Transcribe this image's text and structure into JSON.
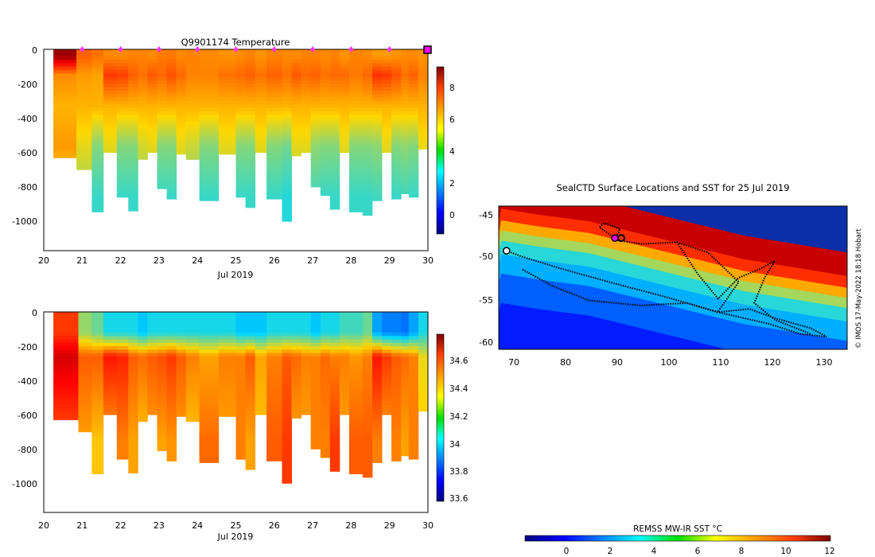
{
  "colors": {
    "jet": [
      "#00007f",
      "#0000ff",
      "#007fff",
      "#00ffff",
      "#7fff7f",
      "#ffff00",
      "#ff7f00",
      "#ff0000",
      "#7f0000"
    ],
    "profile_marker": "#ff33ff",
    "track": "#000000",
    "current_position": "#ff00ff"
  },
  "chart_data": [
    {
      "type": "heatmap",
      "name": "temperature-section",
      "title": "Q9901174  Temperature",
      "xlabel": "Jul 2019",
      "ylabel": "",
      "x_ticks": [
        "20",
        "21",
        "22",
        "23",
        "24",
        "25",
        "26",
        "27",
        "28",
        "29",
        "30"
      ],
      "y_ticks": [
        "0",
        "-200",
        "-400",
        "-600",
        "-800",
        "-1000"
      ],
      "xlim": [
        20,
        30
      ],
      "ylim": [
        -1170,
        0
      ],
      "colorbar": {
        "min": -1,
        "max": 9.5,
        "ticks": [
          "0",
          "2",
          "4",
          "6",
          "8"
        ],
        "tick_values": [
          0,
          2,
          4,
          6,
          8
        ]
      },
      "profile_marker_days": [
        21,
        22,
        23,
        24,
        25,
        26,
        27,
        28,
        29
      ],
      "profiles": [
        {
          "t0": 20.25,
          "t1": 20.85,
          "maxdepth": 630,
          "surface": 9.2,
          "thermo": 6.5,
          "deep": 5.5
        },
        {
          "t0": 20.85,
          "t1": 21.25,
          "maxdepth": 700,
          "surface": 7.0,
          "thermo": 6.3,
          "deep": 4.5
        },
        {
          "t0": 21.25,
          "t1": 21.55,
          "maxdepth": 945,
          "surface": 6.8,
          "thermo": 6.2,
          "deep": 3.5
        },
        {
          "t0": 21.55,
          "t1": 21.9,
          "maxdepth": 600,
          "surface": 6.5,
          "thermo": 7.5,
          "deep": 4.5
        },
        {
          "t0": 21.9,
          "t1": 22.2,
          "maxdepth": 860,
          "surface": 6.5,
          "thermo": 7.4,
          "deep": 3.5
        },
        {
          "t0": 22.2,
          "t1": 22.45,
          "maxdepth": 940,
          "surface": 6.6,
          "thermo": 7.0,
          "deep": 3.5
        },
        {
          "t0": 22.45,
          "t1": 22.7,
          "maxdepth": 640,
          "surface": 6.6,
          "thermo": 6.8,
          "deep": 4.3
        },
        {
          "t0": 22.7,
          "t1": 22.95,
          "maxdepth": 600,
          "surface": 6.5,
          "thermo": 7.1,
          "deep": 4.5
        },
        {
          "t0": 22.95,
          "t1": 23.2,
          "maxdepth": 810,
          "surface": 6.7,
          "thermo": 6.9,
          "deep": 3.5
        },
        {
          "t0": 23.2,
          "t1": 23.45,
          "maxdepth": 870,
          "surface": 6.7,
          "thermo": 7.2,
          "deep": 3.5
        },
        {
          "t0": 23.45,
          "t1": 23.7,
          "maxdepth": 610,
          "surface": 6.5,
          "thermo": 6.9,
          "deep": 4.5
        },
        {
          "t0": 23.7,
          "t1": 24.05,
          "maxdepth": 640,
          "surface": 6.6,
          "thermo": 6.6,
          "deep": 4.2
        },
        {
          "t0": 24.05,
          "t1": 24.55,
          "maxdepth": 880,
          "surface": 6.5,
          "thermo": 6.6,
          "deep": 3.5
        },
        {
          "t0": 24.55,
          "t1": 25.0,
          "maxdepth": 610,
          "surface": 6.4,
          "thermo": 6.8,
          "deep": 4.5
        },
        {
          "t0": 25.0,
          "t1": 25.25,
          "maxdepth": 860,
          "surface": 6.5,
          "thermo": 6.9,
          "deep": 3.5
        },
        {
          "t0": 25.25,
          "t1": 25.5,
          "maxdepth": 920,
          "surface": 6.6,
          "thermo": 7.0,
          "deep": 3.5
        },
        {
          "t0": 25.5,
          "t1": 25.8,
          "maxdepth": 600,
          "surface": 6.4,
          "thermo": 6.8,
          "deep": 4.5
        },
        {
          "t0": 25.8,
          "t1": 26.2,
          "maxdepth": 870,
          "surface": 6.6,
          "thermo": 7.0,
          "deep": 3.5
        },
        {
          "t0": 26.2,
          "t1": 26.45,
          "maxdepth": 1000,
          "surface": 6.5,
          "thermo": 6.8,
          "deep": 3.3
        },
        {
          "t0": 26.45,
          "t1": 26.7,
          "maxdepth": 620,
          "surface": 6.5,
          "thermo": 7.1,
          "deep": 4.5
        },
        {
          "t0": 26.7,
          "t1": 26.95,
          "maxdepth": 600,
          "surface": 6.6,
          "thermo": 6.9,
          "deep": 4.5
        },
        {
          "t0": 26.95,
          "t1": 27.2,
          "maxdepth": 800,
          "surface": 6.6,
          "thermo": 7.0,
          "deep": 3.6
        },
        {
          "t0": 27.2,
          "t1": 27.45,
          "maxdepth": 850,
          "surface": 6.5,
          "thermo": 6.8,
          "deep": 3.5
        },
        {
          "t0": 27.45,
          "t1": 27.7,
          "maxdepth": 930,
          "surface": 6.6,
          "thermo": 6.9,
          "deep": 3.5
        },
        {
          "t0": 27.7,
          "t1": 27.95,
          "maxdepth": 600,
          "surface": 6.4,
          "thermo": 6.9,
          "deep": 4.5
        },
        {
          "t0": 27.95,
          "t1": 28.3,
          "maxdepth": 945,
          "surface": 6.6,
          "thermo": 6.7,
          "deep": 3.5
        },
        {
          "t0": 28.3,
          "t1": 28.55,
          "maxdepth": 965,
          "surface": 6.5,
          "thermo": 6.9,
          "deep": 3.5
        },
        {
          "t0": 28.55,
          "t1": 28.8,
          "maxdepth": 880,
          "surface": 6.3,
          "thermo": 7.6,
          "deep": 3.6
        },
        {
          "t0": 28.8,
          "t1": 29.05,
          "maxdepth": 600,
          "surface": 6.3,
          "thermo": 7.5,
          "deep": 4.5
        },
        {
          "t0": 29.05,
          "t1": 29.3,
          "maxdepth": 870,
          "surface": 6.4,
          "thermo": 7.2,
          "deep": 3.5
        },
        {
          "t0": 29.3,
          "t1": 29.5,
          "maxdepth": 840,
          "surface": 6.5,
          "thermo": 6.8,
          "deep": 3.6
        },
        {
          "t0": 29.5,
          "t1": 29.75,
          "maxdepth": 860,
          "surface": 6.5,
          "thermo": 7.0,
          "deep": 3.5
        },
        {
          "t0": 29.75,
          "t1": 30.0,
          "maxdepth": 580,
          "surface": 6.4,
          "thermo": 6.6,
          "deep": 4.6
        }
      ]
    },
    {
      "type": "heatmap",
      "name": "salinity-section",
      "title": "",
      "xlabel": "Jul 2019",
      "ylabel": "",
      "x_ticks": [
        "20",
        "21",
        "22",
        "23",
        "24",
        "25",
        "26",
        "27",
        "28",
        "29",
        "30"
      ],
      "y_ticks": [
        "0",
        "-200",
        "-400",
        "-600",
        "-800",
        "-1000"
      ],
      "xlim": [
        20,
        30
      ],
      "ylim": [
        -1170,
        0
      ],
      "colorbar": {
        "min": 33.57,
        "max": 34.78,
        "ticks": [
          "33.6",
          "33.8",
          "34",
          "34.2",
          "34.4",
          "34.6"
        ],
        "tick_values": [
          33.6,
          33.8,
          34.0,
          34.2,
          34.4,
          34.6
        ]
      },
      "profiles": [
        {
          "t0": 20.25,
          "t1": 20.9,
          "maxdepth": 630,
          "surface": 34.55,
          "mid": 34.68,
          "deep": 34.5
        },
        {
          "t0": 20.9,
          "t1": 21.25,
          "maxdepth": 700,
          "surface": 34.2,
          "mid": 34.5,
          "deep": 34.4
        },
        {
          "t0": 21.25,
          "t1": 21.55,
          "maxdepth": 945,
          "surface": 34.15,
          "mid": 34.5,
          "deep": 34.35
        },
        {
          "t0": 21.55,
          "t1": 21.9,
          "maxdepth": 600,
          "surface": 34.05,
          "mid": 34.6,
          "deep": 34.4
        },
        {
          "t0": 21.9,
          "t1": 22.2,
          "maxdepth": 860,
          "surface": 34.05,
          "mid": 34.58,
          "deep": 34.45
        },
        {
          "t0": 22.2,
          "t1": 22.45,
          "maxdepth": 940,
          "surface": 34.05,
          "mid": 34.5,
          "deep": 34.4
        },
        {
          "t0": 22.45,
          "t1": 22.7,
          "maxdepth": 640,
          "surface": 34.0,
          "mid": 34.48,
          "deep": 34.35
        },
        {
          "t0": 22.7,
          "t1": 22.95,
          "maxdepth": 600,
          "surface": 34.05,
          "mid": 34.5,
          "deep": 34.4
        },
        {
          "t0": 22.95,
          "t1": 23.2,
          "maxdepth": 810,
          "surface": 34.05,
          "mid": 34.52,
          "deep": 34.4
        },
        {
          "t0": 23.2,
          "t1": 23.45,
          "maxdepth": 870,
          "surface": 34.05,
          "mid": 34.55,
          "deep": 34.42
        },
        {
          "t0": 23.45,
          "t1": 23.7,
          "maxdepth": 610,
          "surface": 34.05,
          "mid": 34.5,
          "deep": 34.4
        },
        {
          "t0": 23.7,
          "t1": 24.05,
          "maxdepth": 640,
          "surface": 34.05,
          "mid": 34.45,
          "deep": 34.35
        },
        {
          "t0": 24.05,
          "t1": 24.55,
          "maxdepth": 880,
          "surface": 34.05,
          "mid": 34.4,
          "deep": 34.48
        },
        {
          "t0": 24.55,
          "t1": 25.0,
          "maxdepth": 610,
          "surface": 34.05,
          "mid": 34.45,
          "deep": 34.4
        },
        {
          "t0": 25.0,
          "t1": 25.25,
          "maxdepth": 860,
          "surface": 34.0,
          "mid": 34.45,
          "deep": 34.45
        },
        {
          "t0": 25.25,
          "t1": 25.5,
          "maxdepth": 920,
          "surface": 34.0,
          "mid": 34.5,
          "deep": 34.4
        },
        {
          "t0": 25.5,
          "t1": 25.8,
          "maxdepth": 600,
          "surface": 34.0,
          "mid": 34.4,
          "deep": 34.35
        },
        {
          "t0": 25.8,
          "t1": 26.2,
          "maxdepth": 870,
          "surface": 34.05,
          "mid": 34.45,
          "deep": 34.5
        },
        {
          "t0": 26.2,
          "t1": 26.45,
          "maxdepth": 1000,
          "surface": 34.05,
          "mid": 34.5,
          "deep": 34.55
        },
        {
          "t0": 26.45,
          "t1": 26.7,
          "maxdepth": 620,
          "surface": 34.05,
          "mid": 34.48,
          "deep": 34.4
        },
        {
          "t0": 26.7,
          "t1": 26.95,
          "maxdepth": 600,
          "surface": 34.05,
          "mid": 34.45,
          "deep": 34.4
        },
        {
          "t0": 26.95,
          "t1": 27.2,
          "maxdepth": 800,
          "surface": 34.0,
          "mid": 34.45,
          "deep": 34.45
        },
        {
          "t0": 27.2,
          "t1": 27.45,
          "maxdepth": 850,
          "surface": 34.05,
          "mid": 34.48,
          "deep": 34.45
        },
        {
          "t0": 27.45,
          "t1": 27.7,
          "maxdepth": 930,
          "surface": 34.05,
          "mid": 34.45,
          "deep": 34.55
        },
        {
          "t0": 27.7,
          "t1": 27.95,
          "maxdepth": 600,
          "surface": 34.1,
          "mid": 34.45,
          "deep": 34.4
        },
        {
          "t0": 27.95,
          "t1": 28.3,
          "maxdepth": 945,
          "surface": 34.1,
          "mid": 34.42,
          "deep": 34.5
        },
        {
          "t0": 28.3,
          "t1": 28.55,
          "maxdepth": 965,
          "surface": 34.15,
          "mid": 34.45,
          "deep": 34.5
        },
        {
          "t0": 28.55,
          "t1": 28.8,
          "maxdepth": 880,
          "surface": 33.95,
          "mid": 34.6,
          "deep": 34.45
        },
        {
          "t0": 28.8,
          "t1": 29.05,
          "maxdepth": 600,
          "surface": 33.9,
          "mid": 34.55,
          "deep": 34.4
        },
        {
          "t0": 29.05,
          "t1": 29.3,
          "maxdepth": 870,
          "surface": 33.9,
          "mid": 34.5,
          "deep": 34.45
        },
        {
          "t0": 29.3,
          "t1": 29.5,
          "maxdepth": 840,
          "surface": 33.88,
          "mid": 34.48,
          "deep": 34.4
        },
        {
          "t0": 29.5,
          "t1": 29.75,
          "maxdepth": 860,
          "surface": 33.95,
          "mid": 34.45,
          "deep": 34.45
        },
        {
          "t0": 29.75,
          "t1": 30.0,
          "maxdepth": 580,
          "surface": 34.05,
          "mid": 34.3,
          "deep": 34.35
        }
      ]
    },
    {
      "type": "heatmap",
      "name": "sst-map",
      "title": "SealCTD Surface Locations and SST for 25 Jul 2019",
      "xlabel": "",
      "ylabel": "",
      "x_ticks": [
        "70",
        "80",
        "90",
        "100",
        "110",
        "120",
        "130"
      ],
      "y_ticks": [
        "-45",
        "-50",
        "-55",
        "-60"
      ],
      "xlim": [
        67.5,
        135
      ],
      "ylim": [
        -61,
        -44
      ],
      "colorbar_label": "REMSS MW-IR SST °C",
      "colorbar": {
        "min": -2,
        "max": 12,
        "ticks": [
          "0",
          "2",
          "4",
          "6",
          "8",
          "10",
          "12"
        ],
        "tick_values": [
          0,
          2,
          4,
          6,
          8,
          10,
          12
        ]
      },
      "credit": "© IMOS 17-May-2022 18:18 Hobart",
      "sst_fronts": [
        {
          "lon": 68,
          "lat": -47.5
        },
        {
          "lon": 75,
          "lat": -48.2
        },
        {
          "lon": 85,
          "lat": -49.0
        },
        {
          "lon": 95,
          "lat": -50.5
        },
        {
          "lon": 105,
          "lat": -52.0
        },
        {
          "lon": 115,
          "lat": -53.5
        },
        {
          "lon": 125,
          "lat": -54.5
        },
        {
          "lon": 135,
          "lat": -55.5
        }
      ],
      "tracks": [
        [
          [
            68.5,
            -49.2
          ],
          [
            72,
            -50
          ],
          [
            80,
            -51.5
          ],
          [
            90,
            -53.2
          ],
          [
            100,
            -54.8
          ],
          [
            110,
            -56.6
          ],
          [
            120,
            -58.0
          ],
          [
            126,
            -59.2
          ],
          [
            131,
            -59.5
          ],
          [
            128,
            -58.5
          ],
          [
            121,
            -57.3
          ],
          [
            116,
            -56.2
          ],
          [
            110,
            -56.6
          ],
          [
            104,
            -55.5
          ],
          [
            95,
            -55.8
          ],
          [
            85,
            -55.2
          ],
          [
            78,
            -53.5
          ],
          [
            72,
            -51.5
          ]
        ],
        [
          [
            90,
            -48
          ],
          [
            95,
            -48.5
          ],
          [
            102,
            -48.3
          ],
          [
            106,
            -52
          ],
          [
            110,
            -55
          ],
          [
            114,
            -52.5
          ],
          [
            118,
            -51.5
          ],
          [
            121,
            -50.5
          ],
          [
            119,
            -52.5
          ],
          [
            117,
            -55.5
          ],
          [
            121,
            -57.5
          ],
          [
            128,
            -59.2
          ]
        ],
        [
          [
            90,
            -47.8
          ],
          [
            87,
            -46.5
          ],
          [
            88,
            -46.0
          ],
          [
            91,
            -46.7
          ],
          [
            90,
            -48
          ]
        ],
        [
          [
            102,
            -48.3
          ],
          [
            108,
            -49.5
          ],
          [
            114,
            -53
          ],
          [
            110,
            -56.5
          ]
        ]
      ],
      "deployment_marker": {
        "lon": 69,
        "lat": -49.3
      },
      "current_position": {
        "lon": 90,
        "lat": -47.8
      }
    }
  ]
}
